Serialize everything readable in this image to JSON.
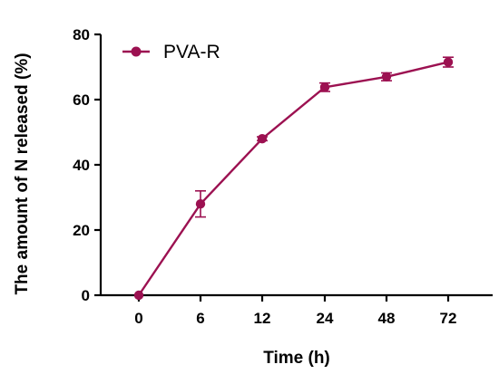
{
  "chart_data": {
    "type": "line",
    "categories": [
      "0",
      "6",
      "12",
      "24",
      "48",
      "72"
    ],
    "xlabel": "Time (h)",
    "ylabel": "The amount of N released (%)",
    "ylim": [
      0,
      80
    ],
    "yticks": [
      "0",
      "20",
      "40",
      "60",
      "80"
    ],
    "grid": false,
    "legend_position": "top-left",
    "series": [
      {
        "name": "PVA-R",
        "color": "#9c1151",
        "marker": "circle",
        "values": [
          0,
          28,
          48,
          63.8,
          67,
          71.5
        ],
        "errors": [
          0,
          4,
          0.6,
          1.3,
          1.2,
          1.5
        ]
      }
    ]
  }
}
